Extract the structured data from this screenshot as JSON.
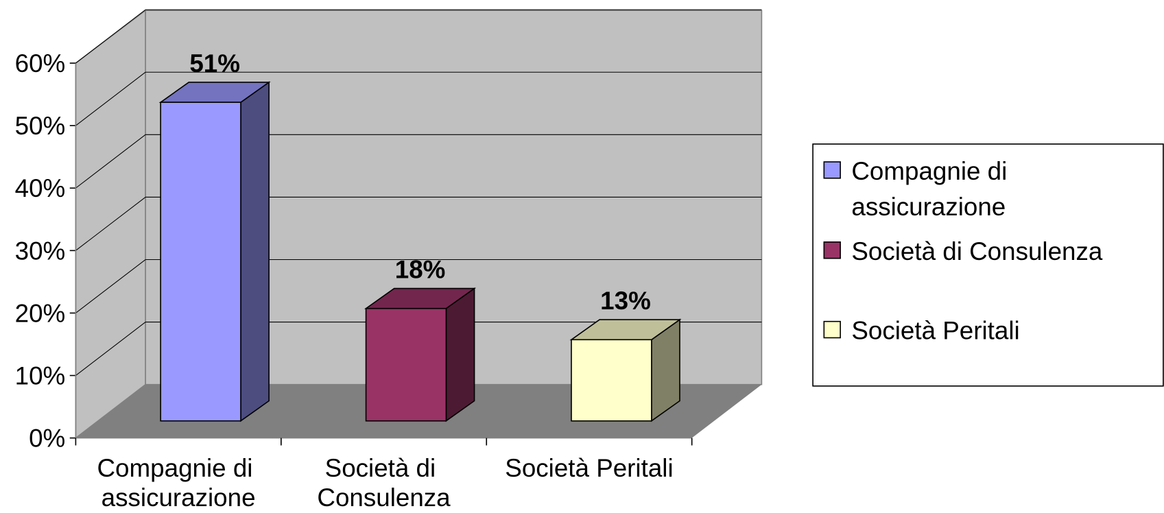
{
  "chart_data": {
    "type": "bar3d",
    "categories": [
      "Compagnie di assicurazione",
      "Società di Consulenza",
      "Società Peritali"
    ],
    "values": [
      51,
      18,
      13
    ],
    "value_labels": [
      "51%",
      "18%",
      "13%"
    ],
    "colors": [
      "#9999ff",
      "#993366",
      "#ffffcc"
    ],
    "ylim": [
      0,
      60
    ],
    "yticks": [
      {
        "value": 0,
        "label": "0%"
      },
      {
        "value": 10,
        "label": "10%"
      },
      {
        "value": 20,
        "label": "20%"
      },
      {
        "value": 30,
        "label": "30%"
      },
      {
        "value": 40,
        "label": "40%"
      },
      {
        "value": 50,
        "label": "50%"
      },
      {
        "value": 60,
        "label": "60%"
      }
    ],
    "grid": true,
    "legend": "right"
  }
}
